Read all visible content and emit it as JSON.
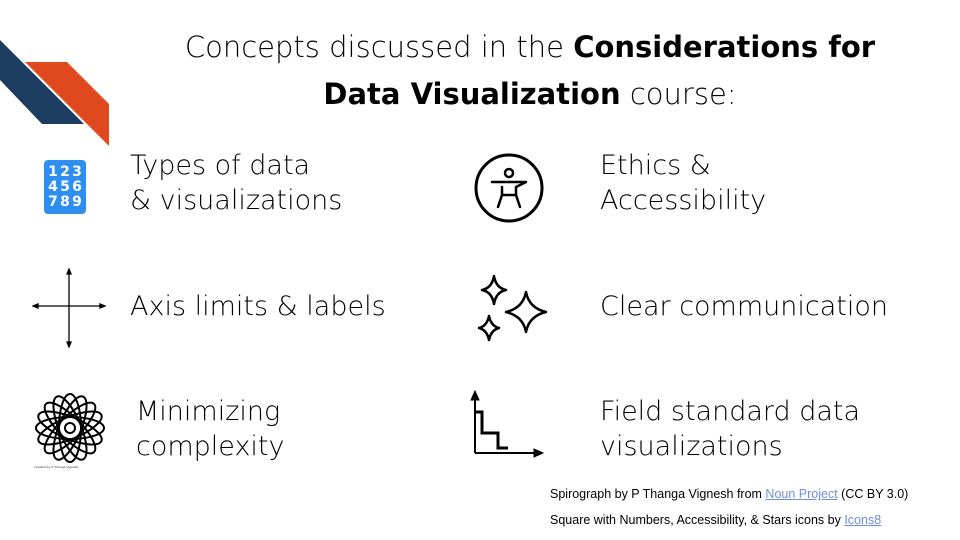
{
  "title": {
    "part1": "Concepts discussed in the ",
    "bold1": "Considerations for",
    "bold2": "Data Visualization",
    "part2": " course:"
  },
  "colors": {
    "navy": "#1c3d5f",
    "orange": "#e04a1e",
    "icon_blue": "#2f8ff0",
    "link": "#6d8fd8"
  },
  "items": [
    {
      "icon": "number-grid-icon",
      "line1": "Types of data",
      "line2": "& visualizations",
      "digits": [
        "1",
        "4",
        "7",
        "2",
        "5",
        "8",
        "3",
        "6",
        "9"
      ]
    },
    {
      "icon": "accessibility-icon",
      "line1": "Ethics &",
      "line2": "Accessibility"
    },
    {
      "icon": "axis-cross-icon",
      "line1": "Axis limits & labels"
    },
    {
      "icon": "stars-icon",
      "line1": "Clear communication"
    },
    {
      "icon": "spirograph-icon",
      "line1": "Minimizing",
      "line2": "complexity",
      "logo_text": "Created by P Thanga Vignesh from Noun Project"
    },
    {
      "icon": "step-chart-icon",
      "line1": "Field standard data",
      "line2": "visualizations"
    }
  ],
  "credits": {
    "line1_prefix": "Spirograph by P Thanga Vignesh from ",
    "line1_link": "Noun Project",
    "line1_suffix": " (CC BY 3.0)",
    "line2_prefix": "Square with Numbers, Accessibility, & Stars icons by ",
    "line2_link": "Icons8"
  }
}
